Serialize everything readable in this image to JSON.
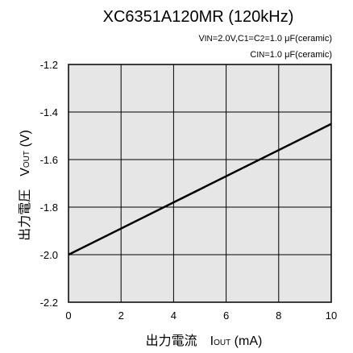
{
  "chart_data": {
    "type": "line",
    "title": "XC6351A120MR (120kHz)",
    "conditions": [
      {
        "parts": [
          {
            "t": "V"
          },
          {
            "t": "IN",
            "sub": true
          },
          {
            "t": "=2.0V,C"
          },
          {
            "t": "1",
            "sub": true
          },
          {
            "t": "=C"
          },
          {
            "t": "2",
            "sub": true
          },
          {
            "t": "=1.0 μF(ceramic)"
          }
        ]
      },
      {
        "parts": [
          {
            "t": "C"
          },
          {
            "t": "IN",
            "sub": true
          },
          {
            "t": "=1.0 μF(ceramic)"
          }
        ]
      }
    ],
    "xlabel": {
      "parts": [
        {
          "t": "出力電流　I"
        },
        {
          "t": "OUT",
          "sub": true
        },
        {
          "t": " (mA)"
        }
      ]
    },
    "ylabel": {
      "parts": [
        {
          "t": "出力電圧　V"
        },
        {
          "t": "OUT",
          "sub": true
        },
        {
          "t": " (V)"
        }
      ]
    },
    "xlim": [
      0,
      10
    ],
    "ylim": [
      -1.2,
      -2.2
    ],
    "x_ticks": [
      0,
      2,
      4,
      6,
      8,
      10
    ],
    "x_tick_labels": [
      "0",
      "2",
      "4",
      "6",
      "8",
      "10"
    ],
    "y_ticks": [
      -2.2,
      -2.0,
      -1.8,
      -1.6,
      -1.4,
      -1.2
    ],
    "y_tick_labels": [
      "-2.2",
      "-2.0",
      "-1.8",
      "-1.6",
      "-1.4",
      "-1.2"
    ],
    "grid": true,
    "plot_background": "#e6e6e6",
    "line_color": "#000000",
    "series": [
      {
        "x": [
          0,
          10
        ],
        "y": [
          -2.0,
          -1.45
        ]
      }
    ]
  }
}
